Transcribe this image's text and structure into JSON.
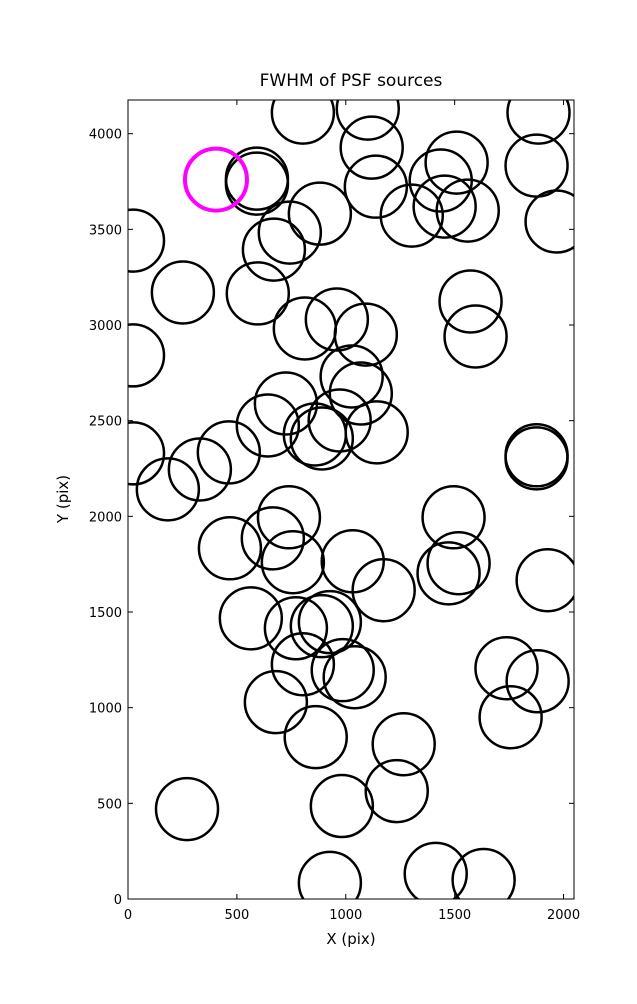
{
  "chart_data": {
    "type": "scatter",
    "title": "FWHM of PSF sources",
    "xlabel": "X (pix)",
    "ylabel": "Y (pix)",
    "xlim": [
      0,
      2048
    ],
    "ylim": [
      0,
      4176
    ],
    "xticks": [
      0,
      500,
      1000,
      1500,
      2000
    ],
    "yticks": [
      0,
      500,
      1000,
      1500,
      2000,
      2500,
      3000,
      3500,
      4000
    ],
    "series": [
      {
        "color": "#000000",
        "x": [
          803,
          1101,
          1119,
          1885,
          592,
          592,
          23,
          881,
          1138,
          1436,
          1509,
          1303,
          1454,
          1560,
          1876,
          1968,
          743,
          670,
          252,
          596,
          23,
          812,
          959,
          1092,
          1573,
          1596,
          1027,
          1069,
          725,
          642,
          858,
          890,
          972,
          1142,
          23,
          463,
          330,
          183,
          1876,
          1876,
          739,
          665,
          468,
          757,
          1032,
          1174,
          1495,
          1518,
          1472,
          1927,
          564,
          771,
          890,
          927,
          803,
          986,
          1041,
          679,
          1738,
          1881,
          862,
          1266,
          1757,
          271,
          982,
          1234,
          927,
          1413,
          1633
        ],
        "values": [
          4110,
          4131,
          3927,
          4110,
          3739,
          3765,
          3441,
          3582,
          3723,
          3755,
          3849,
          3572,
          3619,
          3598,
          3833,
          3541,
          3483,
          3394,
          3170,
          3165,
          2841,
          2982,
          3029,
          2950,
          3123,
          2940,
          2731,
          2642,
          2590,
          2475,
          2428,
          2407,
          2501,
          2439,
          2329,
          2334,
          2245,
          2141,
          2319,
          2303,
          1995,
          1885,
          1833,
          1760,
          1765,
          1614,
          1995,
          1755,
          1702,
          1666,
          1467,
          1415,
          1426,
          1447,
          1227,
          1196,
          1159,
          1029,
          1206,
          1138,
          846,
          809,
          950,
          470,
          486,
          564,
          84,
          131,
          99
        ]
      },
      {
        "color": "#ff00ff",
        "x": [
          404
        ],
        "values": [
          3760
        ]
      }
    ]
  }
}
